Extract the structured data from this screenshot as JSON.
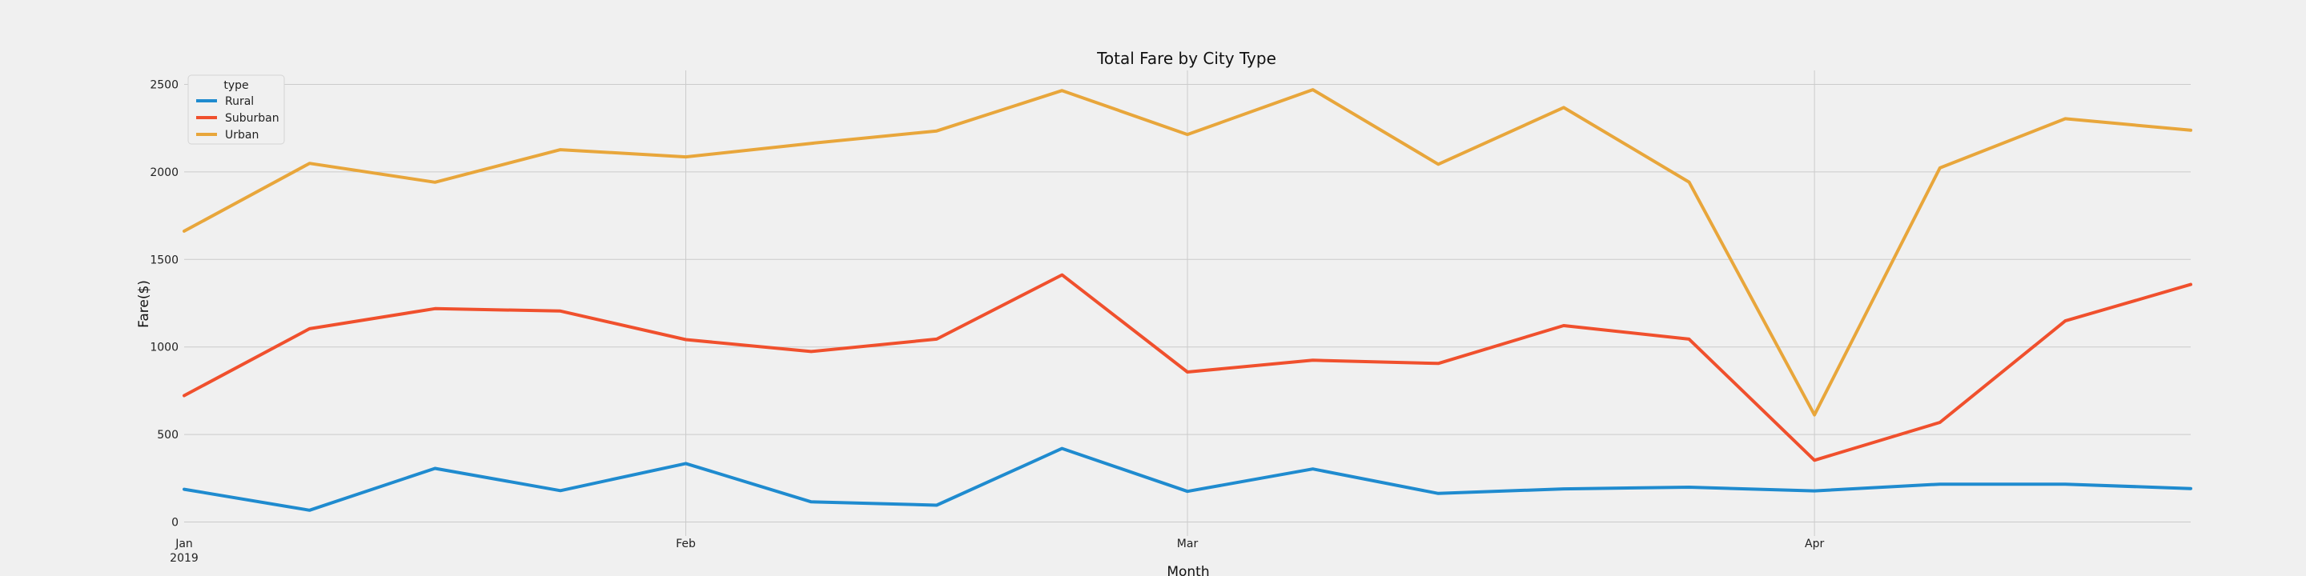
{
  "chart_data": {
    "type": "line",
    "title": "Total Fare by City Type",
    "xlabel": "Month",
    "ylabel": "Fare($)",
    "x_ticks": [
      {
        "label": "Jan",
        "sublabel": "2019",
        "index": 0
      },
      {
        "label": "Feb",
        "index": 4
      },
      {
        "label": "Mar",
        "index": 8
      },
      {
        "label": "Apr",
        "index": 13
      }
    ],
    "y_ticks": [
      0,
      500,
      1000,
      1500,
      2000,
      2500
    ],
    "ylim": [
      -80,
      2580
    ],
    "x_count": 17,
    "grid": true,
    "legend": {
      "title": "type",
      "placement": "top-left"
    },
    "series": [
      {
        "name": "Rural",
        "color": "#1f8bcf",
        "values": [
          187,
          67,
          306,
          179,
          334,
          115,
          96,
          420,
          175,
          303,
          163,
          189,
          199,
          178,
          216,
          216,
          191
        ]
      },
      {
        "name": "Suburban",
        "color": "#f0502d",
        "values": [
          722,
          1104,
          1219,
          1205,
          1042,
          974,
          1045,
          1412,
          857,
          924,
          906,
          1122,
          1045,
          353,
          569,
          1149,
          1357
        ]
      },
      {
        "name": "Urban",
        "color": "#e8a63b",
        "values": [
          1662,
          2049,
          1941,
          2127,
          2086,
          2163,
          2234,
          2465,
          2214,
          2470,
          2044,
          2368,
          1942,
          612,
          2023,
          2304,
          2238
        ]
      }
    ]
  }
}
